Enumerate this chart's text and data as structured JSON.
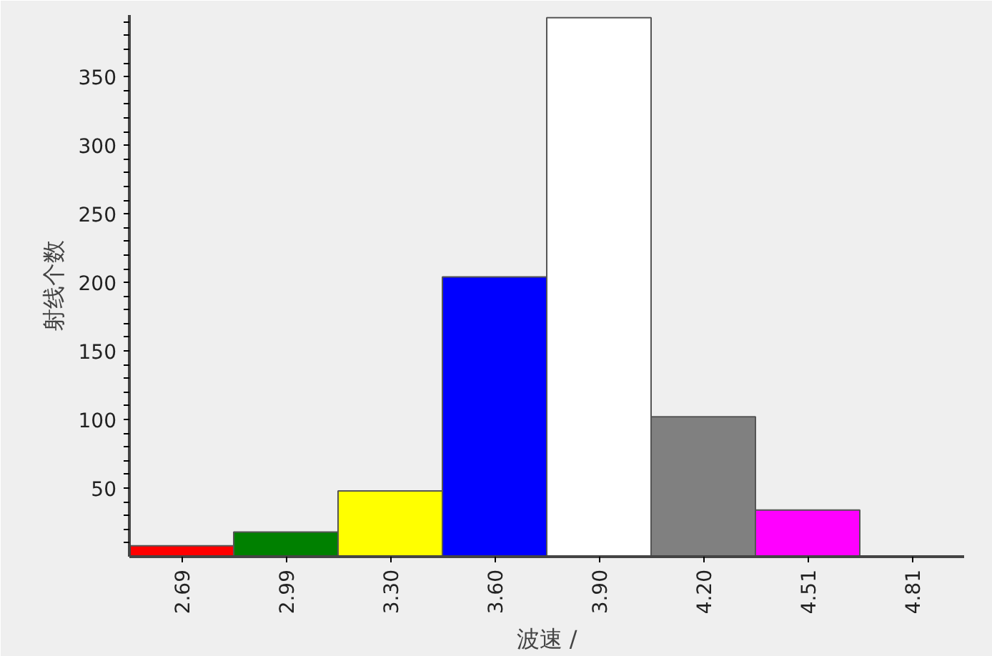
{
  "chart_data": {
    "type": "bar",
    "xlabel": "波速 /",
    "ylabel": "射线个数",
    "categories": [
      "2.69",
      "2.99",
      "3.30",
      "3.60",
      "3.90",
      "4.20",
      "4.51",
      "4.81"
    ],
    "values": [
      8,
      18,
      48,
      204,
      393,
      102,
      34,
      null
    ],
    "colors": [
      "#ff0000",
      "#008000",
      "#ffff00",
      "#0000ff",
      "#ffffff",
      "#808080",
      "#ff00ff",
      null
    ],
    "ylim": [
      0,
      395
    ],
    "yticks": [
      50,
      100,
      150,
      200,
      250,
      300,
      350
    ],
    "grid": false
  }
}
